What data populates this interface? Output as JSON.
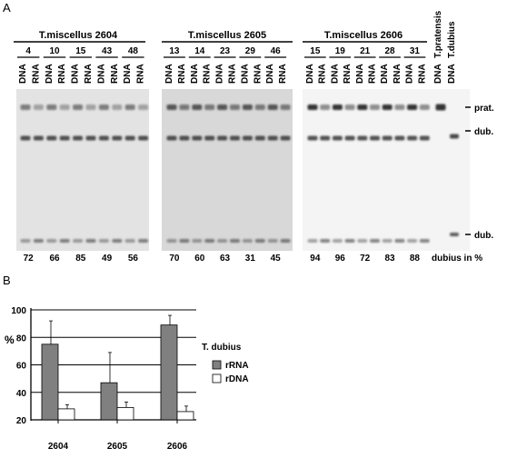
{
  "panel_a": {
    "label": "A",
    "groups": [
      {
        "title": "T.miscellus 2604",
        "ids": [
          "4",
          "10",
          "15",
          "43",
          "48"
        ],
        "dubius_pct": [
          "72",
          "66",
          "85",
          "49",
          "56"
        ]
      },
      {
        "title": "T.miscellus 2605",
        "ids": [
          "13",
          "14",
          "23",
          "29",
          "46"
        ],
        "dubius_pct": [
          "70",
          "60",
          "63",
          "31",
          "45"
        ]
      },
      {
        "title": "T.miscellus 2606",
        "ids": [
          "15",
          "19",
          "21",
          "28",
          "31"
        ],
        "dubius_pct": [
          "94",
          "96",
          "72",
          "83",
          "88"
        ]
      }
    ],
    "lane_labels": {
      "dna": "DNA",
      "rna": "RNA"
    },
    "species_labels": [
      "T.pratensis",
      "T.dubius"
    ],
    "band_labels": {
      "prat": "prat.",
      "dub_upper": "dub.",
      "dub_lower": "dub."
    },
    "footer_label": "dubius in %",
    "colors": {
      "gel1_bg": "#e3e3e3",
      "gel2_bg": "#d8d8d8",
      "gel3_bg": "#f4f4f4",
      "band": "#2a2a2a"
    }
  },
  "panel_b": {
    "label": "B",
    "y_unit": "%",
    "legend_title": "T. dubius",
    "colors": {
      "rRNA": "#808080",
      "rDNA": "#ffffff"
    },
    "chart_data": {
      "type": "bar",
      "categories": [
        "2604",
        "2605",
        "2606"
      ],
      "series": [
        {
          "name": "rRNA",
          "values": [
            75,
            47,
            89
          ],
          "errors": [
            17,
            22,
            7
          ]
        },
        {
          "name": "rDNA",
          "values": [
            28,
            29,
            26
          ],
          "errors": [
            3,
            4,
            4
          ]
        }
      ],
      "yticks": [
        "20",
        "40",
        "60",
        "80",
        "100"
      ],
      "ylim": [
        0,
        100
      ],
      "grid": true,
      "legend": "right"
    }
  }
}
